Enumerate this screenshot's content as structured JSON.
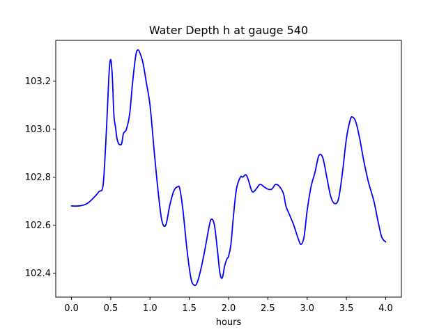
{
  "chart_data": {
    "type": "line",
    "title": "Water Depth h at gauge 540",
    "xlabel": "hours",
    "ylabel": "",
    "xlim": [
      -0.2,
      4.2
    ],
    "ylim": [
      102.3,
      103.37
    ],
    "xticks": [
      0.0,
      0.5,
      1.0,
      1.5,
      2.0,
      2.5,
      3.0,
      3.5,
      4.0
    ],
    "xtick_labels": [
      "0.0",
      "0.5",
      "1.0",
      "1.5",
      "2.0",
      "2.5",
      "3.0",
      "3.5",
      "4.0"
    ],
    "yticks": [
      102.4,
      102.6,
      102.8,
      103.0,
      103.2
    ],
    "ytick_labels": [
      "102.4",
      "102.6",
      "102.8",
      "103.0",
      "103.2"
    ],
    "grid": false,
    "line_color": "#0000ff",
    "series": [
      {
        "x": [
          0.0,
          0.1,
          0.2,
          0.3,
          0.35,
          0.4,
          0.43,
          0.46,
          0.48,
          0.5,
          0.52,
          0.54,
          0.56,
          0.58,
          0.6,
          0.62,
          0.64,
          0.66,
          0.68,
          0.7,
          0.74,
          0.78,
          0.82,
          0.85,
          0.88,
          0.9,
          0.92,
          0.95,
          1.0,
          1.05,
          1.1,
          1.15,
          1.2,
          1.25,
          1.3,
          1.35,
          1.38,
          1.42,
          1.47,
          1.52,
          1.56,
          1.6,
          1.65,
          1.7,
          1.75,
          1.78,
          1.82,
          1.86,
          1.89,
          1.92,
          1.95,
          1.98,
          2.0,
          2.03,
          2.06,
          2.1,
          2.15,
          2.18,
          2.22,
          2.25,
          2.3,
          2.35,
          2.4,
          2.45,
          2.5,
          2.55,
          2.6,
          2.65,
          2.7,
          2.73,
          2.78,
          2.83,
          2.88,
          2.92,
          2.96,
          3.0,
          3.05,
          3.1,
          3.15,
          3.2,
          3.25,
          3.3,
          3.35,
          3.4,
          3.45,
          3.5,
          3.55,
          3.58,
          3.62,
          3.67,
          3.72,
          3.78,
          3.85,
          3.9,
          3.95,
          4.0
        ],
        "y": [
          102.68,
          102.68,
          102.69,
          102.72,
          102.74,
          102.76,
          102.9,
          103.1,
          103.24,
          103.29,
          103.22,
          103.06,
          103.01,
          102.96,
          102.94,
          102.935,
          102.94,
          102.98,
          102.99,
          103.0,
          103.06,
          103.2,
          103.31,
          103.33,
          103.31,
          103.29,
          103.26,
          103.2,
          103.1,
          102.92,
          102.75,
          102.62,
          102.6,
          102.68,
          102.74,
          102.76,
          102.75,
          102.66,
          102.5,
          102.38,
          102.35,
          102.36,
          102.42,
          102.5,
          102.59,
          102.625,
          102.6,
          102.49,
          102.4,
          102.38,
          102.43,
          102.46,
          102.47,
          102.52,
          102.63,
          102.75,
          102.8,
          102.8,
          102.81,
          102.79,
          102.74,
          102.75,
          102.77,
          102.76,
          102.75,
          102.75,
          102.77,
          102.76,
          102.73,
          102.68,
          102.64,
          102.6,
          102.55,
          102.52,
          102.55,
          102.66,
          102.76,
          102.82,
          102.89,
          102.88,
          102.8,
          102.72,
          102.69,
          102.71,
          102.82,
          102.96,
          103.04,
          103.05,
          103.03,
          102.96,
          102.87,
          102.78,
          102.7,
          102.62,
          102.55,
          102.53
        ]
      }
    ]
  }
}
